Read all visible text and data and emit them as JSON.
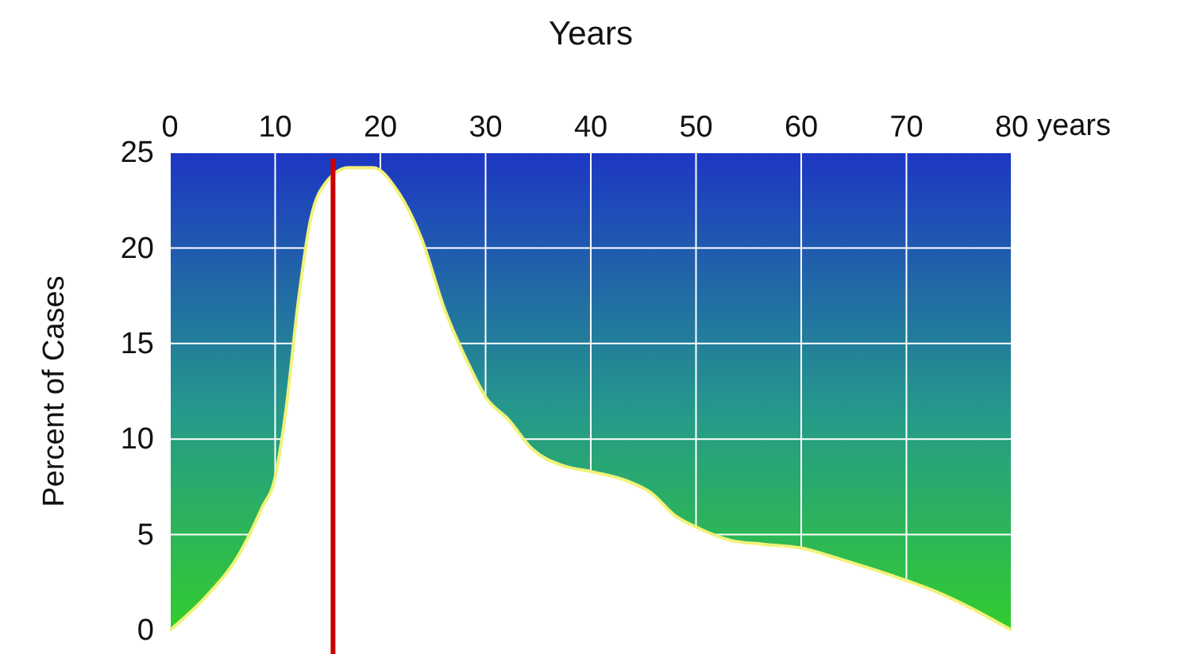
{
  "chart_data": {
    "type": "area",
    "xlabel": "Years",
    "ylabel": "Percent of Cases",
    "x": [
      0,
      3.5,
      6.5,
      8.75,
      10,
      11,
      12.2,
      13.3,
      14.8,
      17,
      19.3,
      21.6,
      23.9,
      26.1,
      28.4,
      30,
      32.2,
      34.4,
      37.4,
      40,
      43.5,
      45.7,
      48,
      50,
      53.3,
      56.3,
      60,
      63.8,
      68.4,
      72.9,
      76.7,
      80
    ],
    "series": [
      {
        "color": "#f2f27a",
        "values": [
          0,
          1.8,
          3.9,
          6.4,
          8,
          11.4,
          17.2,
          21.3,
          23.4,
          24.2,
          24.2,
          23,
          20.5,
          16.8,
          13.9,
          12.2,
          11,
          9.5,
          8.6,
          8.3,
          7.8,
          7.2,
          6,
          5.4,
          4.7,
          4.5,
          4.3,
          3.7,
          2.9,
          2,
          1,
          0
        ]
      }
    ],
    "xlim": [
      0,
      80
    ],
    "xticks": [
      0,
      10,
      20,
      30,
      40,
      50,
      60,
      70,
      80
    ],
    "ylim": [
      0,
      25
    ],
    "yticks": [
      0,
      5,
      10,
      15,
      20,
      25
    ],
    "grid": true,
    "ref_lines": [
      {
        "axis": "x",
        "value": 15.5,
        "color": "#cc0000"
      }
    ],
    "annotations": [
      "years"
    ]
  }
}
